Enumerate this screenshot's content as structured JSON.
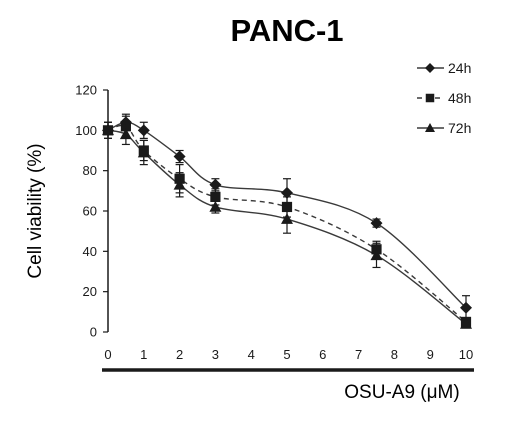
{
  "chart_data": {
    "type": "line",
    "title": "PANC-1",
    "xlabel": "OSU-A9 (μM)",
    "ylabel": "Cell viability (%)",
    "xlim": [
      0,
      10
    ],
    "ylim": [
      0,
      120
    ],
    "x_ticks": [
      "0",
      "1",
      "2",
      "3",
      "4",
      "5",
      "6",
      "7",
      "8",
      "9",
      "10"
    ],
    "y_ticks": [
      "0",
      "20",
      "40",
      "60",
      "80",
      "100",
      "120"
    ],
    "grid": false,
    "legend_position": "top-right",
    "colors": {
      "primary": "#1a1a1a",
      "line": "#3a3a3a"
    },
    "series": [
      {
        "name": "24h",
        "marker": "diamond",
        "line_style": "solid",
        "x": [
          0,
          0.5,
          1,
          2,
          3,
          5,
          7.5,
          10
        ],
        "y": [
          100,
          104,
          100,
          87,
          73,
          69,
          54,
          12
        ],
        "err": [
          4,
          4,
          4,
          3,
          3,
          7,
          2,
          6
        ]
      },
      {
        "name": "48h",
        "marker": "square",
        "line_style": "dashed",
        "x": [
          0,
          0.5,
          1,
          2,
          3,
          5,
          7.5,
          10
        ],
        "y": [
          100,
          102,
          90,
          76,
          67,
          62,
          41,
          5
        ],
        "err": [
          4,
          5,
          5,
          7,
          4,
          5,
          4,
          2
        ]
      },
      {
        "name": "72h",
        "marker": "triangle",
        "line_style": "solid",
        "x": [
          0,
          0.5,
          1,
          2,
          3,
          5,
          7.5,
          10
        ],
        "y": [
          100,
          98,
          89,
          73,
          62,
          56,
          38,
          4
        ],
        "err": [
          4,
          5,
          6,
          6,
          3,
          7,
          6,
          2
        ]
      }
    ]
  }
}
